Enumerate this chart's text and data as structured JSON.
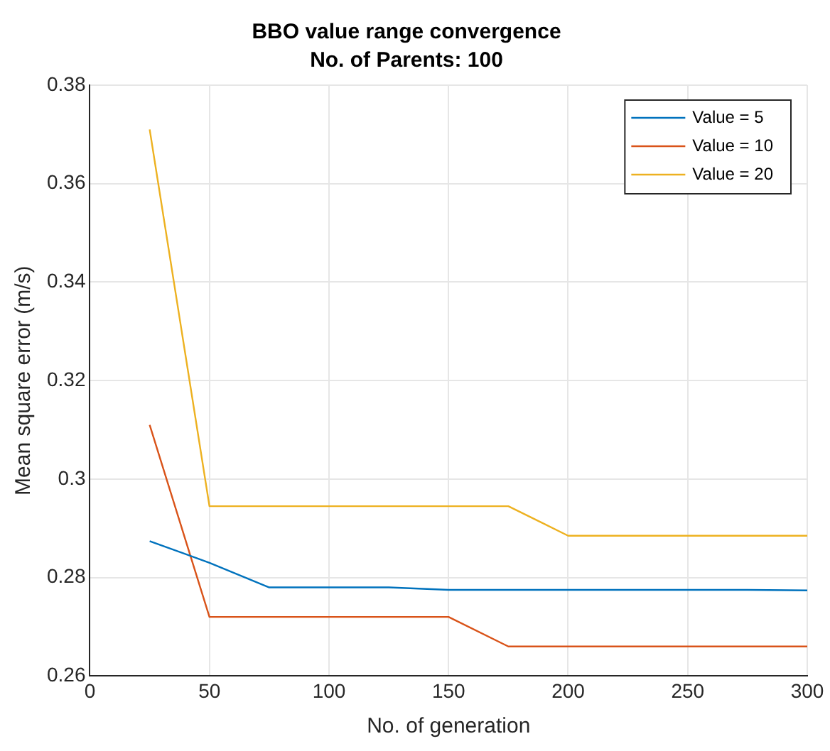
{
  "chart_data": {
    "type": "line",
    "title": "BBO value range convergence",
    "subtitle": "No. of Parents: 100",
    "xlabel": "No. of generation",
    "ylabel": "Mean square error (m/s)",
    "x": [
      25,
      50,
      75,
      100,
      125,
      150,
      175,
      200,
      225,
      250,
      275,
      300
    ],
    "series": [
      {
        "name": "Value = 5",
        "color": "#0072bd",
        "values": [
          0.2874,
          0.283,
          0.278,
          0.278,
          0.278,
          0.2775,
          0.2775,
          0.2775,
          0.2775,
          0.2775,
          0.2775,
          0.2774
        ]
      },
      {
        "name": "Value = 10",
        "color": "#d95319",
        "values": [
          0.311,
          0.272,
          0.272,
          0.272,
          0.272,
          0.272,
          0.266,
          0.266,
          0.266,
          0.266,
          0.266,
          0.266
        ]
      },
      {
        "name": "Value = 20",
        "color": "#edb120",
        "values": [
          0.371,
          0.2945,
          0.2945,
          0.2945,
          0.2945,
          0.2945,
          0.2945,
          0.2885,
          0.2885,
          0.2885,
          0.2885,
          0.2885
        ]
      }
    ],
    "xlim": [
      0,
      300
    ],
    "xticks": [
      0,
      50,
      100,
      150,
      200,
      250,
      300
    ],
    "ylim": [
      0.26,
      0.38
    ],
    "yticks": [
      {
        "value": 0.26,
        "label": "0.26"
      },
      {
        "value": 0.28,
        "label": "0.28"
      },
      {
        "value": 0.3,
        "label": "0.3"
      },
      {
        "value": 0.32,
        "label": "0.32"
      },
      {
        "value": 0.34,
        "label": "0.34"
      },
      {
        "value": 0.36,
        "label": "0.36"
      },
      {
        "value": 0.38,
        "label": "0.38"
      }
    ],
    "grid": true,
    "legend": "top right",
    "marker": "none",
    "line_style": "solid"
  }
}
